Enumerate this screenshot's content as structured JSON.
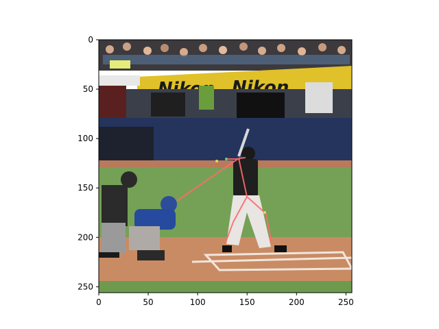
{
  "image": {
    "description_tokens": [
      "ad-banner-text"
    ],
    "banner_text": "Nikon"
  },
  "axes": {
    "x_ticks": [
      "0",
      "50",
      "100",
      "150",
      "200",
      "250"
    ],
    "y_ticks": [
      "0",
      "50",
      "100",
      "150",
      "200",
      "250"
    ],
    "x_range": [
      0,
      256
    ],
    "y_range": [
      0,
      256
    ]
  },
  "colors": {
    "pose_line": "#ff6b6b",
    "field_green": "#6e9a4e",
    "dirt": "#c98b64",
    "wall": "#24345c",
    "banner": "#e0c12a"
  }
}
